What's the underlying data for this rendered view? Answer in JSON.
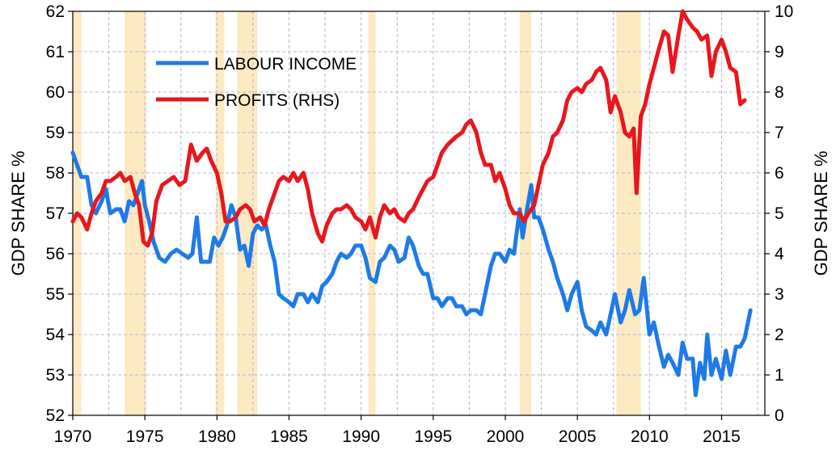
{
  "chart_data": {
    "type": "line",
    "x_axis": {
      "min": 1970,
      "max": 2018,
      "ticks": [
        1970,
        1975,
        1980,
        1985,
        1990,
        1995,
        2000,
        2005,
        2010,
        2015
      ]
    },
    "y_left": {
      "label": "GDP SHARE %",
      "min": 52,
      "max": 62,
      "ticks": [
        52,
        53,
        54,
        55,
        56,
        57,
        58,
        59,
        60,
        61,
        62
      ]
    },
    "y_right": {
      "label": "GDP SHARE %",
      "min": 0,
      "max": 10,
      "ticks": [
        0,
        1,
        2,
        3,
        4,
        5,
        6,
        7,
        8,
        9,
        10
      ]
    },
    "grid": true,
    "legend": {
      "placement": "top-left"
    },
    "recession_bands": [
      [
        1970.0,
        1970.6
      ],
      [
        1973.6,
        1975.1
      ],
      [
        1979.9,
        1980.5
      ],
      [
        1981.4,
        1982.8
      ],
      [
        1990.5,
        1991.0
      ],
      [
        2001.0,
        2001.8
      ],
      [
        2007.7,
        2009.4
      ]
    ],
    "series": [
      {
        "name": "LABOUR INCOME",
        "axis": "left",
        "color": "#1f7ae8",
        "points": [
          [
            1970.0,
            58.5
          ],
          [
            1970.3,
            58.2
          ],
          [
            1970.6,
            57.9
          ],
          [
            1971.0,
            57.9
          ],
          [
            1971.3,
            57.2
          ],
          [
            1971.6,
            57.0
          ],
          [
            1972.0,
            57.3
          ],
          [
            1972.3,
            57.6
          ],
          [
            1972.6,
            57.0
          ],
          [
            1973.0,
            57.1
          ],
          [
            1973.3,
            57.1
          ],
          [
            1973.6,
            56.8
          ],
          [
            1973.9,
            57.3
          ],
          [
            1974.2,
            57.2
          ],
          [
            1974.5,
            57.5
          ],
          [
            1974.8,
            57.8
          ],
          [
            1975.0,
            57.2
          ],
          [
            1975.3,
            56.8
          ],
          [
            1975.6,
            56.3
          ],
          [
            1976.0,
            55.9
          ],
          [
            1976.4,
            55.8
          ],
          [
            1976.8,
            56.0
          ],
          [
            1977.2,
            56.1
          ],
          [
            1977.6,
            56.0
          ],
          [
            1978.0,
            55.9
          ],
          [
            1978.3,
            56.0
          ],
          [
            1978.6,
            56.9
          ],
          [
            1978.9,
            55.8
          ],
          [
            1979.2,
            55.8
          ],
          [
            1979.5,
            55.8
          ],
          [
            1979.8,
            56.4
          ],
          [
            1980.1,
            56.2
          ],
          [
            1980.4,
            56.4
          ],
          [
            1980.7,
            56.7
          ],
          [
            1981.0,
            57.2
          ],
          [
            1981.3,
            56.9
          ],
          [
            1981.6,
            56.1
          ],
          [
            1981.9,
            56.2
          ],
          [
            1982.2,
            55.7
          ],
          [
            1982.5,
            56.5
          ],
          [
            1982.8,
            56.7
          ],
          [
            1983.1,
            56.6
          ],
          [
            1983.4,
            56.7
          ],
          [
            1983.7,
            56.2
          ],
          [
            1984.0,
            55.8
          ],
          [
            1984.3,
            55.0
          ],
          [
            1984.6,
            54.9
          ],
          [
            1985.0,
            54.8
          ],
          [
            1985.3,
            54.7
          ],
          [
            1985.6,
            55.0
          ],
          [
            1986.0,
            55.0
          ],
          [
            1986.3,
            54.8
          ],
          [
            1986.6,
            55.0
          ],
          [
            1987.0,
            54.8
          ],
          [
            1987.3,
            55.2
          ],
          [
            1987.6,
            55.3
          ],
          [
            1988.0,
            55.5
          ],
          [
            1988.3,
            55.8
          ],
          [
            1988.6,
            56.0
          ],
          [
            1989.0,
            55.9
          ],
          [
            1989.3,
            56.0
          ],
          [
            1989.6,
            56.2
          ],
          [
            1990.0,
            56.2
          ],
          [
            1990.3,
            55.9
          ],
          [
            1990.6,
            55.4
          ],
          [
            1991.0,
            55.3
          ],
          [
            1991.3,
            55.8
          ],
          [
            1991.6,
            55.9
          ],
          [
            1992.0,
            56.2
          ],
          [
            1992.3,
            56.1
          ],
          [
            1992.6,
            55.8
          ],
          [
            1993.0,
            55.9
          ],
          [
            1993.3,
            56.4
          ],
          [
            1993.6,
            56.2
          ],
          [
            1994.0,
            55.7
          ],
          [
            1994.3,
            55.5
          ],
          [
            1994.6,
            55.5
          ],
          [
            1995.0,
            54.9
          ],
          [
            1995.3,
            54.9
          ],
          [
            1995.6,
            54.7
          ],
          [
            1996.0,
            54.9
          ],
          [
            1996.3,
            54.9
          ],
          [
            1996.6,
            54.7
          ],
          [
            1997.0,
            54.7
          ],
          [
            1997.3,
            54.5
          ],
          [
            1997.6,
            54.6
          ],
          [
            1998.0,
            54.6
          ],
          [
            1998.3,
            54.5
          ],
          [
            1998.6,
            55.0
          ],
          [
            1999.0,
            55.7
          ],
          [
            1999.3,
            56.0
          ],
          [
            1999.6,
            56.0
          ],
          [
            2000.0,
            55.8
          ],
          [
            2000.3,
            56.1
          ],
          [
            2000.6,
            56.0
          ],
          [
            2001.0,
            57.1
          ],
          [
            2001.2,
            56.4
          ],
          [
            2001.5,
            57.1
          ],
          [
            2001.8,
            57.7
          ],
          [
            2002.0,
            56.9
          ],
          [
            2002.3,
            56.9
          ],
          [
            2002.6,
            56.6
          ],
          [
            2003.0,
            56.1
          ],
          [
            2003.3,
            55.8
          ],
          [
            2003.6,
            55.4
          ],
          [
            2004.0,
            55.0
          ],
          [
            2004.3,
            54.6
          ],
          [
            2004.6,
            55.0
          ],
          [
            2005.0,
            55.3
          ],
          [
            2005.3,
            54.6
          ],
          [
            2005.6,
            54.2
          ],
          [
            2006.0,
            54.1
          ],
          [
            2006.3,
            54.0
          ],
          [
            2006.6,
            54.3
          ],
          [
            2007.0,
            54.0
          ],
          [
            2007.3,
            54.5
          ],
          [
            2007.6,
            55.0
          ],
          [
            2008.0,
            54.3
          ],
          [
            2008.3,
            54.6
          ],
          [
            2008.6,
            55.1
          ],
          [
            2009.0,
            54.5
          ],
          [
            2009.3,
            54.6
          ],
          [
            2009.6,
            55.4
          ],
          [
            2010.0,
            54.0
          ],
          [
            2010.3,
            54.3
          ],
          [
            2010.6,
            53.8
          ],
          [
            2011.0,
            53.2
          ],
          [
            2011.3,
            53.5
          ],
          [
            2011.6,
            53.3
          ],
          [
            2012.0,
            53.0
          ],
          [
            2012.3,
            53.8
          ],
          [
            2012.6,
            53.4
          ],
          [
            2013.0,
            53.4
          ],
          [
            2013.2,
            52.5
          ],
          [
            2013.5,
            53.3
          ],
          [
            2013.8,
            52.9
          ],
          [
            2014.0,
            54.0
          ],
          [
            2014.3,
            53.0
          ],
          [
            2014.6,
            53.4
          ],
          [
            2015.0,
            52.9
          ],
          [
            2015.3,
            53.6
          ],
          [
            2015.6,
            53.0
          ],
          [
            2016.0,
            53.7
          ],
          [
            2016.3,
            53.7
          ],
          [
            2016.6,
            53.9
          ],
          [
            2017.0,
            54.6
          ]
        ]
      },
      {
        "name": "PROFITS (RHS)",
        "axis": "right",
        "color": "#e8171d",
        "points": [
          [
            1970.0,
            4.8
          ],
          [
            1970.3,
            5.0
          ],
          [
            1970.6,
            4.9
          ],
          [
            1971.0,
            4.6
          ],
          [
            1971.3,
            5.0
          ],
          [
            1971.6,
            5.3
          ],
          [
            1972.0,
            5.5
          ],
          [
            1972.3,
            5.8
          ],
          [
            1972.6,
            5.8
          ],
          [
            1973.0,
            5.9
          ],
          [
            1973.3,
            6.0
          ],
          [
            1973.6,
            5.8
          ],
          [
            1974.0,
            5.9
          ],
          [
            1974.3,
            5.5
          ],
          [
            1974.6,
            5.2
          ],
          [
            1974.9,
            4.3
          ],
          [
            1975.2,
            4.2
          ],
          [
            1975.5,
            4.5
          ],
          [
            1975.8,
            5.3
          ],
          [
            1976.2,
            5.7
          ],
          [
            1976.6,
            5.8
          ],
          [
            1977.0,
            5.9
          ],
          [
            1977.4,
            5.7
          ],
          [
            1977.8,
            5.8
          ],
          [
            1978.2,
            6.7
          ],
          [
            1978.6,
            6.3
          ],
          [
            1979.0,
            6.5
          ],
          [
            1979.3,
            6.6
          ],
          [
            1979.6,
            6.3
          ],
          [
            1980.0,
            6.0
          ],
          [
            1980.3,
            5.5
          ],
          [
            1980.6,
            4.8
          ],
          [
            1980.9,
            4.8
          ],
          [
            1981.3,
            4.9
          ],
          [
            1981.6,
            5.1
          ],
          [
            1982.0,
            5.2
          ],
          [
            1982.3,
            5.1
          ],
          [
            1982.6,
            4.8
          ],
          [
            1983.0,
            4.9
          ],
          [
            1983.3,
            4.7
          ],
          [
            1983.6,
            5.1
          ],
          [
            1984.0,
            5.5
          ],
          [
            1984.3,
            5.8
          ],
          [
            1984.6,
            5.9
          ],
          [
            1985.0,
            5.8
          ],
          [
            1985.3,
            6.0
          ],
          [
            1985.6,
            5.8
          ],
          [
            1986.0,
            6.0
          ],
          [
            1986.3,
            5.6
          ],
          [
            1986.6,
            5.0
          ],
          [
            1987.0,
            4.5
          ],
          [
            1987.3,
            4.3
          ],
          [
            1987.6,
            4.7
          ],
          [
            1988.0,
            5.0
          ],
          [
            1988.3,
            5.1
          ],
          [
            1988.6,
            5.1
          ],
          [
            1989.0,
            5.2
          ],
          [
            1989.3,
            5.1
          ],
          [
            1989.6,
            4.9
          ],
          [
            1990.0,
            4.8
          ],
          [
            1990.3,
            4.6
          ],
          [
            1990.6,
            4.9
          ],
          [
            1991.0,
            4.4
          ],
          [
            1991.3,
            4.9
          ],
          [
            1991.6,
            5.2
          ],
          [
            1992.0,
            5.0
          ],
          [
            1992.3,
            5.1
          ],
          [
            1992.6,
            4.9
          ],
          [
            1993.0,
            4.8
          ],
          [
            1993.3,
            5.0
          ],
          [
            1993.6,
            5.1
          ],
          [
            1994.0,
            5.4
          ],
          [
            1994.3,
            5.6
          ],
          [
            1994.6,
            5.8
          ],
          [
            1995.0,
            5.9
          ],
          [
            1995.3,
            6.2
          ],
          [
            1995.6,
            6.5
          ],
          [
            1996.0,
            6.7
          ],
          [
            1996.3,
            6.8
          ],
          [
            1996.6,
            6.9
          ],
          [
            1997.0,
            7.0
          ],
          [
            1997.3,
            7.2
          ],
          [
            1997.6,
            7.3
          ],
          [
            1998.0,
            7.0
          ],
          [
            1998.3,
            6.5
          ],
          [
            1998.6,
            6.2
          ],
          [
            1999.0,
            6.2
          ],
          [
            1999.3,
            5.8
          ],
          [
            1999.6,
            6.0
          ],
          [
            2000.0,
            5.6
          ],
          [
            2000.3,
            5.2
          ],
          [
            2000.6,
            5.0
          ],
          [
            2001.0,
            5.0
          ],
          [
            2001.3,
            4.8
          ],
          [
            2001.6,
            5.0
          ],
          [
            2002.0,
            5.2
          ],
          [
            2002.3,
            5.7
          ],
          [
            2002.6,
            6.2
          ],
          [
            2003.0,
            6.5
          ],
          [
            2003.3,
            6.9
          ],
          [
            2003.6,
            7.0
          ],
          [
            2004.0,
            7.3
          ],
          [
            2004.3,
            7.8
          ],
          [
            2004.6,
            8.0
          ],
          [
            2005.0,
            8.1
          ],
          [
            2005.3,
            8.0
          ],
          [
            2005.6,
            8.2
          ],
          [
            2006.0,
            8.3
          ],
          [
            2006.3,
            8.5
          ],
          [
            2006.6,
            8.6
          ],
          [
            2007.0,
            8.3
          ],
          [
            2007.3,
            7.5
          ],
          [
            2007.6,
            7.9
          ],
          [
            2008.0,
            7.5
          ],
          [
            2008.3,
            7.0
          ],
          [
            2008.6,
            6.9
          ],
          [
            2008.9,
            7.1
          ],
          [
            2009.1,
            5.5
          ],
          [
            2009.4,
            7.4
          ],
          [
            2009.7,
            7.7
          ],
          [
            2010.0,
            8.2
          ],
          [
            2010.3,
            8.6
          ],
          [
            2010.6,
            9.0
          ],
          [
            2011.0,
            9.5
          ],
          [
            2011.3,
            9.4
          ],
          [
            2011.6,
            8.5
          ],
          [
            2012.0,
            9.4
          ],
          [
            2012.3,
            10.0
          ],
          [
            2012.6,
            9.8
          ],
          [
            2013.0,
            9.6
          ],
          [
            2013.3,
            9.5
          ],
          [
            2013.6,
            9.3
          ],
          [
            2014.0,
            9.4
          ],
          [
            2014.3,
            8.4
          ],
          [
            2014.6,
            9.0
          ],
          [
            2015.0,
            9.3
          ],
          [
            2015.3,
            9.0
          ],
          [
            2015.6,
            8.6
          ],
          [
            2016.0,
            8.5
          ],
          [
            2016.3,
            7.7
          ],
          [
            2016.6,
            7.8
          ]
        ]
      }
    ]
  }
}
